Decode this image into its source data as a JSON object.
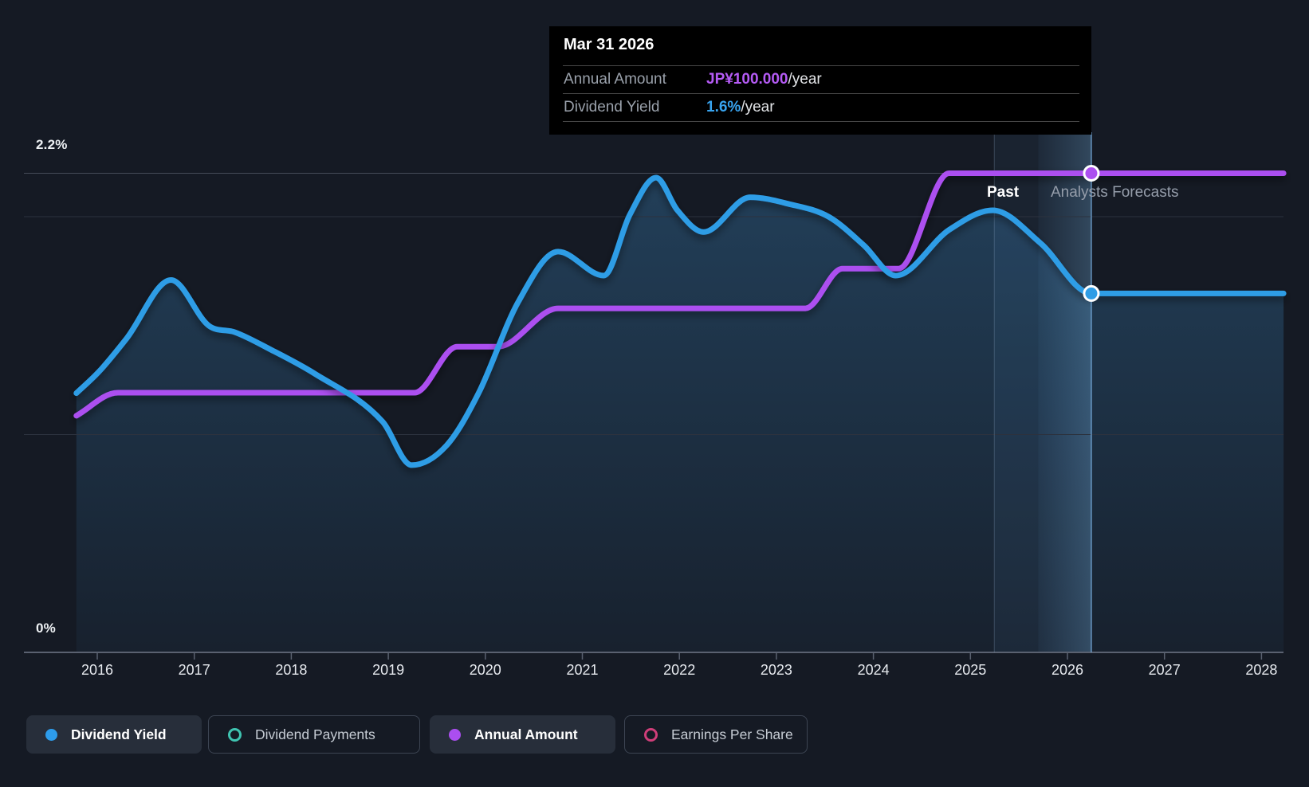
{
  "labels": {
    "past": "Past",
    "forecast": "Analysts Forecasts"
  },
  "tooltip": {
    "title": "Mar 31 2026",
    "rows": [
      {
        "label": "Annual Amount",
        "value": "JP¥100.000",
        "suffix": "/year",
        "color": "#b55bf5"
      },
      {
        "label": "Dividend Yield",
        "value": "1.6%",
        "suffix": "/year",
        "color": "#38a3ee"
      }
    ]
  },
  "legend": {
    "items": [
      {
        "label": "Dividend Yield",
        "marker": "filled",
        "color": "#2d9ceb",
        "selected": true
      },
      {
        "label": "Dividend Payments",
        "marker": "outline",
        "color": "#3fc4b1",
        "selected": false
      },
      {
        "label": "Annual Amount",
        "marker": "filled",
        "color": "#ab4ef0",
        "selected": true
      },
      {
        "label": "Earnings Per Share",
        "marker": "outline",
        "color": "#cf3e79",
        "selected": false
      }
    ]
  },
  "chart_data": {
    "type": "line",
    "title": "Dividend history and forecast",
    "x_ticks": [
      2016,
      2017,
      2018,
      2019,
      2020,
      2021,
      2022,
      2023,
      2024,
      2025,
      2026,
      2027,
      2028
    ],
    "x_axis_range": [
      2015.244,
      2028.228
    ],
    "y_axis": {
      "unit": "%",
      "labels": {
        "max": "2.2%",
        "min": "0%"
      },
      "gridlines_pct": [
        2.2,
        2.0,
        1.0,
        0
      ],
      "range_pct": [
        0,
        2.2
      ]
    },
    "past_forecast_divider_year": 2025.246,
    "hover": {
      "date": "Mar 31 2026",
      "year": 2026.246,
      "annual_amount_jpy": 100.0,
      "dividend_yield_pct": 1.648
    },
    "series": [
      {
        "name": "Dividend Yield",
        "unit": "%",
        "color": "#2f9de6",
        "points": [
          [
            2015.785,
            1.19
          ],
          [
            2016.02,
            1.29
          ],
          [
            2016.3,
            1.44
          ],
          [
            2016.76,
            1.71
          ],
          [
            2017.15,
            1.5
          ],
          [
            2017.42,
            1.47
          ],
          [
            2017.79,
            1.39
          ],
          [
            2018.24,
            1.28
          ],
          [
            2018.94,
            1.06
          ],
          [
            2019.24,
            0.86
          ],
          [
            2019.6,
            0.95
          ],
          [
            2019.93,
            1.19
          ],
          [
            2020.34,
            1.61
          ],
          [
            2020.75,
            1.84
          ],
          [
            2021.22,
            1.73
          ],
          [
            2021.49,
            2.01
          ],
          [
            2021.76,
            2.18
          ],
          [
            2021.98,
            2.03
          ],
          [
            2022.25,
            1.93
          ],
          [
            2022.73,
            2.09
          ],
          [
            2023.12,
            2.06
          ],
          [
            2023.54,
            2.0
          ],
          [
            2023.9,
            1.87
          ],
          [
            2024.23,
            1.73
          ],
          [
            2024.78,
            1.94
          ],
          [
            2025.23,
            2.03
          ],
          [
            2025.72,
            1.88
          ],
          [
            2026.246,
            1.648
          ],
          [
            2028.228,
            1.648
          ]
        ]
      },
      {
        "name": "Annual Amount",
        "unit": "JP¥/year",
        "color": "#ac4ff0",
        "points": [
          [
            2015.785,
            49.4
          ],
          [
            2016.21,
            54.2
          ],
          [
            2019.27,
            54.2
          ],
          [
            2019.71,
            63.8
          ],
          [
            2020.13,
            63.8
          ],
          [
            2020.75,
            71.8
          ],
          [
            2023.3,
            71.8
          ],
          [
            2023.68,
            80.1
          ],
          [
            2024.26,
            80.1
          ],
          [
            2024.78,
            100.0
          ],
          [
            2028.228,
            100.0
          ]
        ]
      }
    ]
  }
}
